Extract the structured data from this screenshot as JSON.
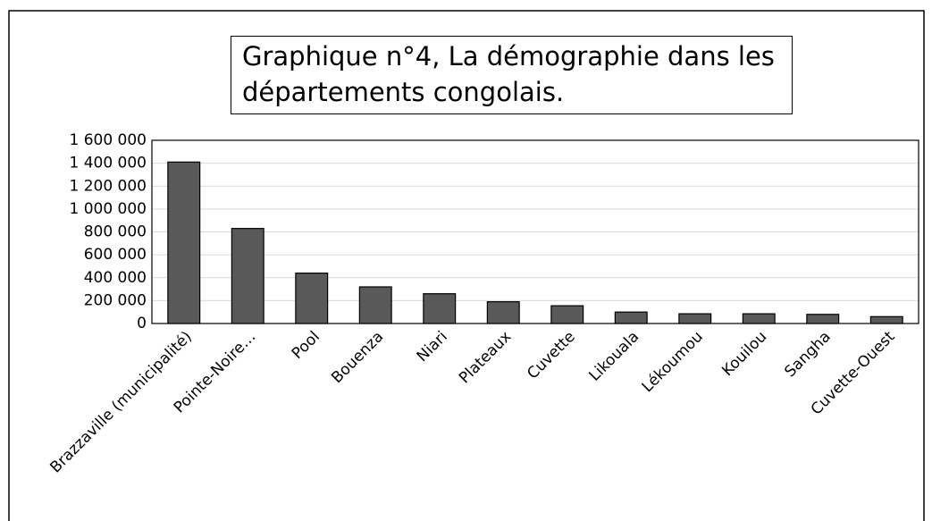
{
  "chart_data": {
    "type": "bar",
    "title": "Graphique n°4, La démographie dans les départements congolais.",
    "categories": [
      "Brazzaville (municipalité)",
      "Pointe-Noire…",
      "Pool",
      "Bouenza",
      "Niari",
      "Plateaux",
      "Cuvette",
      "Likouala",
      "Lékoumou",
      "Kouilou",
      "Sangha",
      "Cuvette-Ouest"
    ],
    "values": [
      1410000,
      830000,
      440000,
      320000,
      260000,
      190000,
      155000,
      100000,
      85000,
      85000,
      80000,
      60000
    ],
    "color": "#595959",
    "ylim": [
      0,
      1600000
    ],
    "yticks": [
      0,
      {
        "value": 200000,
        "label": "200 000"
      },
      {
        "value": 400000,
        "label": "400 000"
      },
      {
        "value": 600000,
        "label": "600 000"
      },
      {
        "value": 800000,
        "label": "800 000"
      },
      {
        "value": 1000000,
        "label": "1 000 000"
      },
      {
        "value": 1200000,
        "label": "1 200 000"
      },
      {
        "value": 1400000,
        "label": "1 400 000"
      },
      {
        "value": 1600000,
        "label": "1 600 000"
      }
    ],
    "grid": true
  }
}
